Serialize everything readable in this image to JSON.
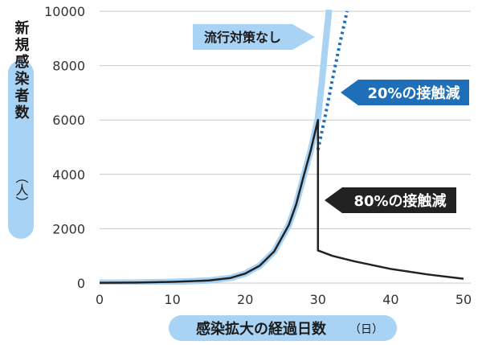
{
  "chart_data": {
    "type": "line",
    "xlabel": "感染拡大の経過日数",
    "xlabel_unit": "（日）",
    "ylabel": "新規感染者数",
    "ylabel_unit": "（人）",
    "xlim": [
      0,
      50
    ],
    "ylim": [
      0,
      10000
    ],
    "x_ticks": [
      0,
      10,
      20,
      30,
      40,
      50
    ],
    "y_ticks": [
      0,
      2000,
      4000,
      6000,
      8000,
      10000
    ],
    "grid": true,
    "colors": {
      "baseline": "#a9d3f5",
      "reduction20": "#1f6fb8",
      "reduction80": "#222222",
      "shared": "#0d2b45"
    },
    "series": [
      {
        "name": "流行対策なし",
        "style": "thick-light-blue",
        "x": [
          0,
          5,
          10,
          15,
          18,
          20,
          22,
          24,
          26,
          27,
          28,
          29,
          30,
          30.5,
          31,
          31.5
        ],
        "y": [
          10,
          20,
          45,
          95,
          190,
          350,
          640,
          1170,
          2140,
          2890,
          3900,
          4870,
          6080,
          7300,
          8700,
          10000
        ]
      },
      {
        "name": "20%の接触減",
        "style": "dotted-blue",
        "x": [
          30,
          31,
          32,
          33,
          34
        ],
        "y": [
          4900,
          6150,
          7500,
          8800,
          10000
        ]
      },
      {
        "name": "80%の接触減",
        "style": "solid-dark",
        "x": [
          0,
          5,
          10,
          15,
          18,
          20,
          22,
          24,
          26,
          27,
          28,
          29,
          30,
          30,
          30,
          32,
          35,
          40,
          45,
          50
        ],
        "y": [
          10,
          20,
          45,
          95,
          190,
          350,
          640,
          1170,
          2140,
          2890,
          3900,
          4870,
          6000,
          4800,
          1200,
          1000,
          800,
          520,
          320,
          160
        ]
      }
    ]
  }
}
